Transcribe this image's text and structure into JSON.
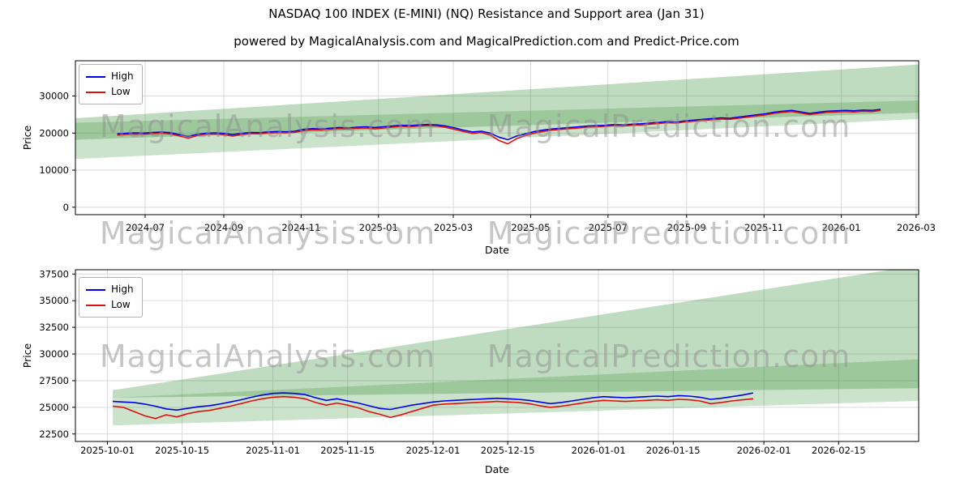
{
  "title": "NASDAQ 100 INDEX (E-MINI) (NQ) Resistance and Support area (Jan 31)",
  "subtitle": "powered by MagicalAnalysis.com and MagicalPrediction.com and Predict-Price.com",
  "watermarks": {
    "left": "MagicalAnalysis.com",
    "right": "MagicalPrediction.com"
  },
  "legend": {
    "high": "High",
    "low": "Low"
  },
  "colors": {
    "high": "#0000ee",
    "low": "#e01010",
    "band": "#2e8b2e",
    "grid": "#d9d9d9",
    "watermark": "#8f8f8f"
  },
  "chart_data": [
    {
      "id": "overview",
      "type": "line",
      "title": "",
      "xlabel": "Date",
      "ylabel": "Price",
      "x_unit": "days since 2024-06-01",
      "xlim": [
        -25,
        640
      ],
      "ylim": [
        -2000,
        39500
      ],
      "grid": true,
      "legend_position": "upper-left",
      "yticks": [
        0,
        10000,
        20000,
        30000
      ],
      "xticks": [
        {
          "pos": 30,
          "label": "2024-07"
        },
        {
          "pos": 92,
          "label": "2024-09"
        },
        {
          "pos": 153,
          "label": "2024-11"
        },
        {
          "pos": 214,
          "label": "2025-01"
        },
        {
          "pos": 273,
          "label": "2025-03"
        },
        {
          "pos": 334,
          "label": "2025-05"
        },
        {
          "pos": 395,
          "label": "2025-07"
        },
        {
          "pos": 457,
          "label": "2025-09"
        },
        {
          "pos": 518,
          "label": "2025-11"
        },
        {
          "pos": 579,
          "label": "2026-01"
        },
        {
          "pos": 638,
          "label": "2026-03"
        }
      ],
      "x_start": 8,
      "x_step": 7,
      "series": [
        {
          "name": "High",
          "color_key": "high",
          "values": [
            19800,
            19950,
            20050,
            20000,
            20150,
            20250,
            20100,
            19600,
            19100,
            19650,
            19950,
            20050,
            19900,
            19600,
            19900,
            20150,
            20100,
            20300,
            20400,
            20350,
            20500,
            21000,
            21200,
            21100,
            21300,
            21500,
            21400,
            21600,
            21700,
            21500,
            21700,
            21900,
            22100,
            22000,
            22200,
            22300,
            22200,
            21900,
            21400,
            20800,
            20300,
            20500,
            20000,
            18900,
            18200,
            19200,
            19800,
            20400,
            20800,
            21100,
            21300,
            21500,
            21700,
            21900,
            22000,
            22100,
            22300,
            22200,
            22400,
            22500,
            22700,
            22900,
            23100,
            23000,
            23300,
            23500,
            23700,
            23900,
            24100,
            24000,
            24300,
            24600,
            24900,
            25200,
            25600,
            25900,
            26100,
            25700,
            25300,
            25600,
            25900,
            26000,
            26100,
            26000,
            26200,
            26100,
            26400
          ]
        },
        {
          "name": "Low",
          "color_key": "low",
          "values": [
            19450,
            19650,
            19750,
            19700,
            19850,
            19950,
            19750,
            19200,
            18650,
            19300,
            19650,
            19750,
            19550,
            19200,
            19550,
            19850,
            19800,
            20000,
            20100,
            20050,
            20200,
            20650,
            20900,
            20800,
            21000,
            21200,
            21100,
            21300,
            21400,
            21150,
            21400,
            21600,
            21800,
            21700,
            21900,
            22000,
            21900,
            21550,
            21000,
            20400,
            19900,
            20150,
            19500,
            18000,
            17100,
            18500,
            19350,
            20000,
            20450,
            20800,
            21000,
            21200,
            21400,
            21600,
            21700,
            21800,
            22000,
            21900,
            22100,
            22200,
            22400,
            22600,
            22800,
            22700,
            23000,
            23200,
            23400,
            23600,
            23800,
            23700,
            24000,
            24300,
            24600,
            24900,
            25300,
            25600,
            25800,
            25400,
            25000,
            25300,
            25600,
            25700,
            25800,
            25700,
            25900,
            25800,
            26100
          ]
        }
      ],
      "bands": [
        {
          "name": "resistance-area",
          "opacity": 0.3,
          "points": [
            [
              -25,
              24000
            ],
            [
              640,
              38500
            ],
            [
              640,
              25500
            ],
            [
              -25,
              18200
            ]
          ]
        },
        {
          "name": "support-area",
          "opacity": 0.25,
          "points": [
            [
              -25,
              22800
            ],
            [
              640,
              28800
            ],
            [
              640,
              23800
            ],
            [
              -25,
              13000
            ]
          ]
        }
      ]
    },
    {
      "id": "detail",
      "type": "line",
      "title": "",
      "xlabel": "Date",
      "ylabel": "Price",
      "x_unit": "days since 2025-09-25",
      "xlim": [
        0,
        158
      ],
      "ylim": [
        21800,
        37900
      ],
      "grid": true,
      "legend_position": "upper-left",
      "yticks": [
        22500,
        25000,
        27500,
        30000,
        32500,
        35000,
        37500
      ],
      "xticks": [
        {
          "pos": 6,
          "label": "2025-10-01"
        },
        {
          "pos": 20,
          "label": "2025-10-15"
        },
        {
          "pos": 37,
          "label": "2025-11-01"
        },
        {
          "pos": 51,
          "label": "2025-11-15"
        },
        {
          "pos": 67,
          "label": "2025-12-01"
        },
        {
          "pos": 81,
          "label": "2025-12-15"
        },
        {
          "pos": 98,
          "label": "2026-01-01"
        },
        {
          "pos": 112,
          "label": "2026-01-15"
        },
        {
          "pos": 129,
          "label": "2026-02-01"
        },
        {
          "pos": 143,
          "label": "2026-02-15"
        }
      ],
      "x_start": 7,
      "x_step": 2,
      "series": [
        {
          "name": "High",
          "color_key": "high",
          "values": [
            25550,
            25500,
            25450,
            25300,
            25100,
            24850,
            24750,
            24900,
            25050,
            25150,
            25300,
            25500,
            25700,
            25950,
            26150,
            26300,
            26350,
            26300,
            26200,
            25900,
            25650,
            25800,
            25600,
            25400,
            25150,
            24900,
            24800,
            25000,
            25200,
            25350,
            25500,
            25600,
            25650,
            25700,
            25750,
            25800,
            25850,
            25800,
            25750,
            25650,
            25500,
            25350,
            25450,
            25600,
            25750,
            25900,
            26000,
            25950,
            25900,
            25950,
            26000,
            26050,
            26000,
            26100,
            26050,
            25950,
            25750,
            25850,
            26000,
            26150,
            26350
          ]
        },
        {
          "name": "Low",
          "color_key": "low",
          "values": [
            25100,
            25000,
            24600,
            24200,
            23950,
            24300,
            24100,
            24400,
            24600,
            24700,
            24900,
            25100,
            25350,
            25600,
            25800,
            25950,
            26000,
            25950,
            25800,
            25450,
            25200,
            25400,
            25200,
            24950,
            24600,
            24350,
            24050,
            24300,
            24600,
            24900,
            25200,
            25300,
            25350,
            25400,
            25450,
            25500,
            25550,
            25500,
            25450,
            25350,
            25150,
            25000,
            25100,
            25250,
            25400,
            25550,
            25650,
            25600,
            25550,
            25600,
            25650,
            25700,
            25650,
            25750,
            25700,
            25600,
            25350,
            25450,
            25600,
            25700,
            25800
          ]
        }
      ],
      "bands": [
        {
          "name": "resistance-area",
          "opacity": 0.3,
          "points": [
            [
              7,
              26600
            ],
            [
              158,
              38300
            ],
            [
              158,
              26800
            ],
            [
              7,
              25900
            ]
          ]
        },
        {
          "name": "support-area",
          "opacity": 0.25,
          "points": [
            [
              7,
              25900
            ],
            [
              158,
              29500
            ],
            [
              158,
              25600
            ],
            [
              7,
              23300
            ]
          ]
        }
      ]
    }
  ]
}
